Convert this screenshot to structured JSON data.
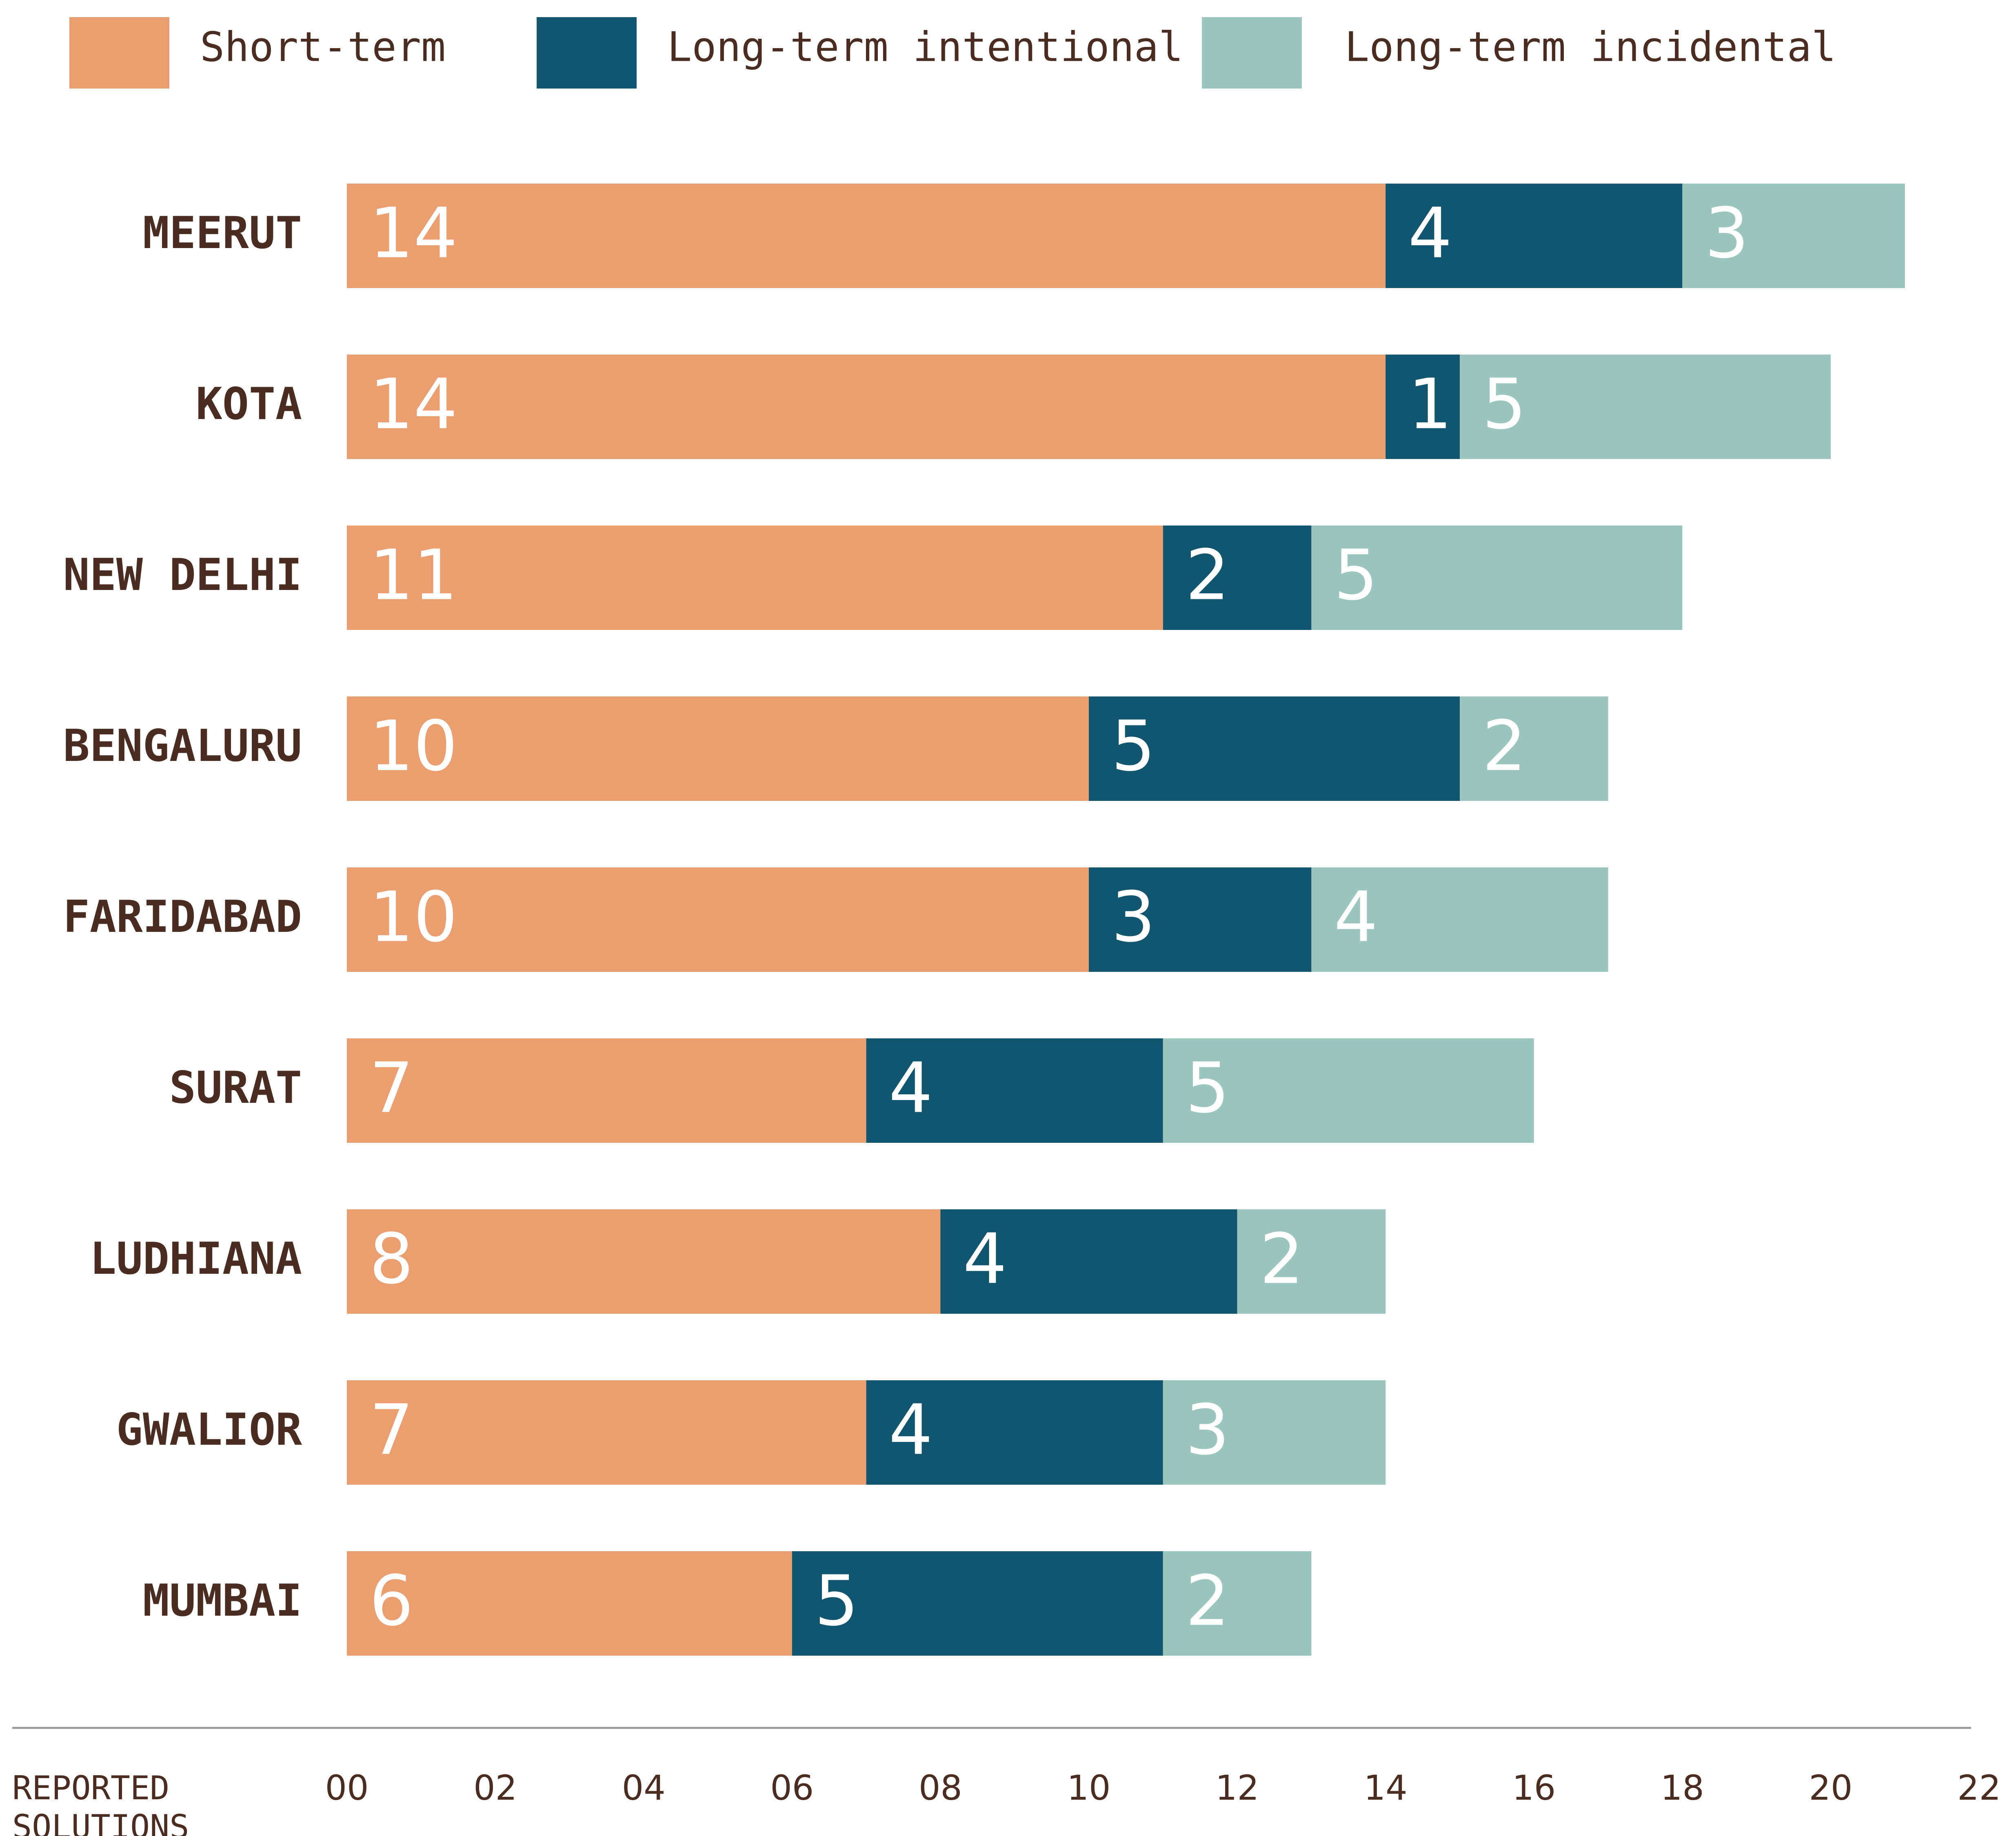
{
  "chart_data": {
    "type": "bar",
    "orientation": "horizontal",
    "stacked": true,
    "categories": [
      "MEERUT",
      "KOTA",
      "NEW DELHI",
      "BENGALURU",
      "FARIDABAD",
      "SURAT",
      "LUDHIANA",
      "GWALIOR",
      "MUMBAI"
    ],
    "series": [
      {
        "name": "Short-term",
        "color": "#eb9e70",
        "values": [
          14,
          14,
          11,
          10,
          10,
          7,
          8,
          7,
          6
        ]
      },
      {
        "name": "Long-term intentional",
        "color": "#11556e",
        "values": [
          4,
          1,
          2,
          5,
          3,
          4,
          4,
          4,
          5
        ]
      },
      {
        "name": "Long-term incidental",
        "color": "#9bc5bd",
        "values": [
          3,
          5,
          5,
          2,
          4,
          5,
          2,
          3,
          2
        ]
      }
    ],
    "xlim": [
      0,
      22
    ],
    "xticks": [
      "00",
      "02",
      "04",
      "06",
      "08",
      "10",
      "12",
      "14",
      "16",
      "18",
      "20",
      "22"
    ],
    "xlabel_lines": [
      "REPORTED",
      "SOLUTIONS"
    ],
    "legend_position": "top",
    "grid": false,
    "text_color": "#4a2c21",
    "axis_line_color": "#9a9a9a"
  }
}
